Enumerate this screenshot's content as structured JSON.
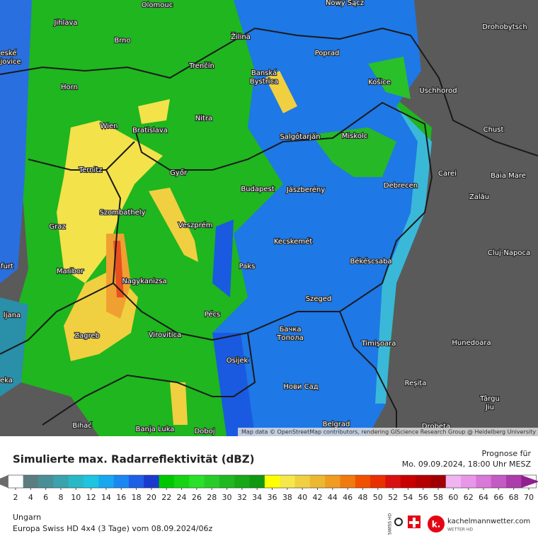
{
  "map": {
    "cities": [
      "Olomouc",
      "Nowy Sącz",
      "Jihlava",
      "Brno",
      "Žilina",
      "Poprad",
      "Drohobytsch",
      "eské",
      "ejovice",
      "Horn",
      "Trenčín",
      "Banská",
      "Bystrica",
      "Košice",
      "Uschhorod",
      "Nitra",
      "Wien",
      "Bratislava",
      "Salgótarján",
      "Miskolc",
      "Chust",
      "Ternitz",
      "Győr",
      "Budapest",
      "Jászberény",
      "Debrecen",
      "Carei",
      "Baia Mare",
      "Szombathely",
      "Zalău",
      "Graz",
      "Veszprém",
      "Kecskemét",
      "Cluj-Napoca",
      "furt",
      "Maribor",
      "Paks",
      "Békéscsaba",
      "Nagykanizsa",
      "Szeged",
      "ljana",
      "Pécs",
      "Бачка",
      "Топола",
      "Zagreb",
      "Virovitica",
      "Timișoara",
      "Hunedoara",
      "Osijek",
      "eka",
      "Нови Сад",
      "Reșița",
      "Târgu",
      "Jiu",
      "Bihać",
      "Banja Luka",
      "Doboj",
      "Belgrad",
      "Drobeta"
    ],
    "attribution": "Map data © OpenStreetMap contributors, rendering GIScience Research Group @ Heidelberg University"
  },
  "legend": {
    "title": "Simulierte max. Radarreflektivität (dBZ)",
    "ticks": [
      2,
      4,
      6,
      8,
      10,
      12,
      14,
      16,
      18,
      20,
      22,
      24,
      26,
      28,
      30,
      32,
      34,
      36,
      38,
      40,
      42,
      44,
      46,
      48,
      50,
      52,
      54,
      56,
      58,
      60,
      62,
      64,
      66,
      68,
      70
    ],
    "colors": [
      "#6b6b6b",
      "#5c7d80",
      "#4a8f96",
      "#3aa3ad",
      "#2ab8c6",
      "#1fc4e0",
      "#18a8f0",
      "#1a88f0",
      "#1f5fe6",
      "#1a3ad0",
      "#00c800",
      "#14d414",
      "#2ae02a",
      "#28cc28",
      "#20b820",
      "#18a818",
      "#109810",
      "#ffff00",
      "#f5e84a",
      "#f0d040",
      "#ecb830",
      "#f09c20",
      "#f07a10",
      "#f05000",
      "#e83000",
      "#d81010",
      "#c80000",
      "#b40000",
      "#a00000",
      "#f0b4f0",
      "#e896e8",
      "#d878d8",
      "#c45ac4",
      "#ac3cac",
      "#902090"
    ]
  },
  "forecast": {
    "label": "Prognose für",
    "time": "Mo. 09.09.2024, 18:00 Uhr MESZ"
  },
  "footer": {
    "region": "Ungarn",
    "model": "Europa Swiss HD 4x4 (3 Tage) vom 08.09.2024/06z"
  },
  "logo": {
    "badge": "SWISS HD",
    "site": "kachelmannwetter.com",
    "tagline": "WETTER HD"
  }
}
